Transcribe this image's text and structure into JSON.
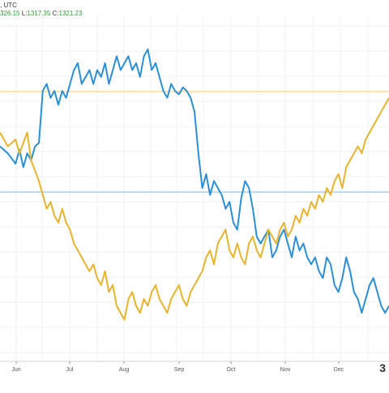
{
  "header": {
    "line1_suffix": ", UTC",
    "o_value": "326.15",
    "l_label": "L:",
    "l_value": "1317.35",
    "c_label": "C:",
    "c_value": "1321.23"
  },
  "logo_text": "3",
  "chart_data": {
    "type": "line",
    "title": "",
    "xlabel": "",
    "ylabel": "",
    "x_tick_labels": [
      "Jun",
      "Jul",
      "Aug",
      "Sep",
      "Oct",
      "Nov",
      "Dec"
    ],
    "ylim": [
      0,
      100
    ],
    "xlim": [
      0,
      100
    ],
    "grid": true,
    "series": [
      {
        "color": "#2b8fd8",
        "x": [
          0,
          2,
          4,
          5,
          6,
          7,
          8,
          9,
          10,
          11,
          12,
          13,
          14,
          15,
          16,
          17,
          18,
          19,
          20,
          21,
          22,
          23,
          24,
          25,
          26,
          27,
          28,
          29,
          30,
          31,
          32,
          33,
          34,
          35,
          36,
          37,
          38,
          39,
          40,
          41,
          42,
          43,
          44,
          45,
          46,
          47,
          48,
          49,
          50,
          51,
          52,
          53,
          54,
          55,
          56,
          57,
          58,
          59,
          60,
          61,
          62,
          63,
          64,
          65,
          66,
          67,
          68,
          69,
          70,
          71,
          72,
          73,
          74,
          75,
          76,
          77,
          78,
          79,
          80,
          81,
          82,
          83,
          84,
          85,
          86,
          87,
          88,
          89,
          90,
          91,
          92,
          93,
          94,
          95,
          96,
          97,
          98,
          99,
          100
        ],
        "y": [
          62,
          60,
          57,
          61,
          56,
          60,
          58,
          62,
          63,
          78,
          80,
          76,
          78,
          74,
          78,
          76,
          80,
          84,
          86,
          80,
          82,
          84,
          80,
          84,
          82,
          86,
          80,
          84,
          88,
          84,
          86,
          88,
          84,
          86,
          82,
          88,
          90,
          84,
          86,
          82,
          78,
          76,
          80,
          78,
          77,
          79,
          78,
          76,
          72,
          60,
          50,
          54,
          48,
          52,
          50,
          48,
          44,
          46,
          40,
          38,
          47,
          52,
          50,
          44,
          36,
          34,
          36,
          38,
          30,
          32,
          36,
          38,
          34,
          30,
          36,
          32,
          34,
          30,
          28,
          30,
          26,
          24,
          30,
          28,
          22,
          20,
          24,
          30,
          26,
          20,
          18,
          14,
          18,
          22,
          24,
          20,
          16,
          14,
          16
        ],
        "note": "values are relative price levels read from the plot"
      },
      {
        "color": "#e8b42c",
        "x": [
          0,
          2,
          4,
          5,
          6,
          7,
          8,
          9,
          10,
          11,
          12,
          13,
          14,
          15,
          16,
          17,
          18,
          19,
          20,
          21,
          22,
          23,
          24,
          25,
          26,
          27,
          28,
          29,
          30,
          31,
          32,
          33,
          34,
          35,
          36,
          37,
          38,
          39,
          40,
          41,
          42,
          43,
          44,
          45,
          46,
          47,
          48,
          49,
          50,
          51,
          52,
          53,
          54,
          55,
          56,
          57,
          58,
          59,
          60,
          61,
          62,
          63,
          64,
          65,
          66,
          67,
          68,
          69,
          70,
          71,
          72,
          73,
          74,
          75,
          76,
          77,
          78,
          79,
          80,
          81,
          82,
          83,
          84,
          85,
          86,
          87,
          88,
          89,
          90,
          91,
          92,
          93,
          94,
          95,
          96,
          97,
          98,
          99,
          100
        ],
        "y": [
          66,
          62,
          64,
          60,
          63,
          66,
          58,
          55,
          52,
          48,
          44,
          46,
          42,
          40,
          44,
          40,
          38,
          34,
          32,
          30,
          28,
          26,
          28,
          24,
          22,
          26,
          20,
          22,
          16,
          14,
          12,
          18,
          20,
          16,
          14,
          18,
          16,
          20,
          22,
          18,
          16,
          14,
          18,
          20,
          22,
          18,
          16,
          20,
          22,
          24,
          26,
          30,
          32,
          28,
          34,
          36,
          38,
          32,
          30,
          34,
          30,
          28,
          34,
          36,
          32,
          30,
          34,
          38,
          36,
          34,
          38,
          40,
          36,
          38,
          42,
          40,
          44,
          42,
          46,
          44,
          48,
          46,
          50,
          48,
          52,
          54,
          50,
          56,
          58,
          60,
          62,
          60,
          64,
          66,
          68,
          70,
          72,
          74,
          76
        ]
      }
    ]
  }
}
